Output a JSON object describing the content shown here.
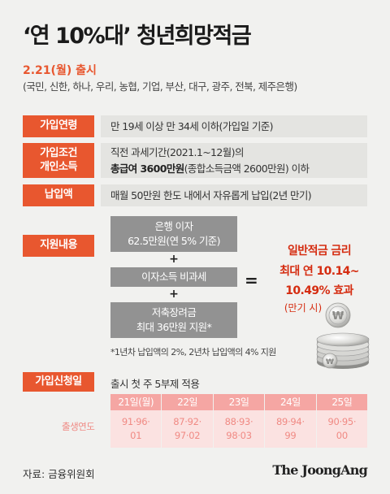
{
  "title": "‘연 10%대’ 청년희망적금",
  "launch": "2.21(월) 출시",
  "banks": "(국민, 신한, 하나, 우리, 농협, 기업, 부산, 대구, 광주, 전북, 제주은행)",
  "rows": {
    "age": {
      "label": "가입연령",
      "text": "만 19세 이상 만 34세 이하(가입일 기준)"
    },
    "income": {
      "label_line1": "가입조건",
      "label_line2": "개인소득",
      "line1": "직전 과세기간(2021.1~12월)의",
      "line2_bold": "총급여 3600만원",
      "line2_rest": "(종합소득금액 2600만원) 이하"
    },
    "payment": {
      "label": "납입액",
      "text": "매월 50만원 한도 내에서 자유롭게 납입(2년 만기)"
    },
    "support": {
      "label": "지원내용",
      "box1_line1": "은행 이자",
      "box1_line2": "62.5만원(연 5% 기준)",
      "plus": "+",
      "box2": "이자소득 비과세",
      "box3_line1": "저축장려금",
      "box3_line2": "최대 36만원 지원*",
      "equals": "=",
      "rate_line1": "일반적금 금리",
      "rate_line2": "최대 연 10.14~",
      "rate_line3": "10.49% 효과",
      "rate_note": "(만기 시)",
      "footnote": "*1년차 납입액의 2%, 2년차 납입액의 4% 지원"
    },
    "apply": {
      "label": "가입신청일",
      "text": "출시 첫 주 5부제 적용",
      "birth_label": "출생연도",
      "schedule": [
        {
          "day": "21일(월)",
          "y1": "91·96·",
          "y2": "01"
        },
        {
          "day": "22일",
          "y1": "87·92·",
          "y2": "97·02"
        },
        {
          "day": "23일",
          "y1": "88·93·",
          "y2": "98·03"
        },
        {
          "day": "24일",
          "y1": "89·94·",
          "y2": "99"
        },
        {
          "day": "25일",
          "y1": "90·95·",
          "y2": "00"
        }
      ]
    }
  },
  "source": "자료: 금융위원회",
  "brand": "The JoongAng",
  "coin_symbol": "₩",
  "colors": {
    "accent": "#e8572f",
    "highlight": "#d52c10",
    "gray_box": "#929292",
    "pink_header": "#f5a6a3",
    "pink_cell": "#fbe2e1"
  }
}
